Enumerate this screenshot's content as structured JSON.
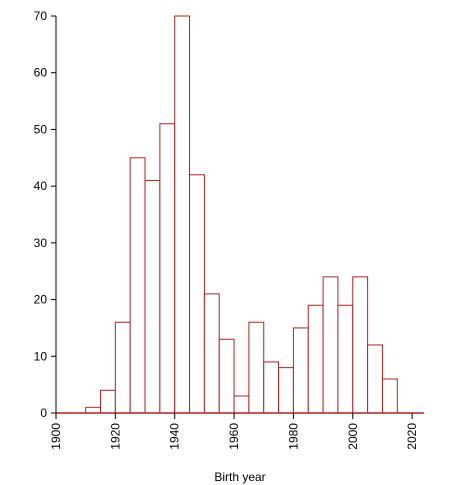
{
  "chart_data": {
    "type": "bar",
    "subtype": "histogram",
    "title": "",
    "xlabel": "Birth year",
    "ylabel": "",
    "xlim": [
      1900,
      2024
    ],
    "ylim": [
      0,
      70
    ],
    "bin_width": 5,
    "x_ticks": [
      "1900",
      "1920",
      "1940",
      "1960",
      "1980",
      "2000",
      "2020"
    ],
    "y_ticks": [
      "0",
      "10",
      "20",
      "30",
      "40",
      "50",
      "60",
      "70"
    ],
    "bins": [
      {
        "start": 1910,
        "value": 1
      },
      {
        "start": 1915,
        "value": 4
      },
      {
        "start": 1920,
        "value": 16
      },
      {
        "start": 1925,
        "value": 45
      },
      {
        "start": 1930,
        "value": 41
      },
      {
        "start": 1935,
        "value": 51
      },
      {
        "start": 1940,
        "value": 70
      },
      {
        "start": 1945,
        "value": 42
      },
      {
        "start": 1950,
        "value": 21
      },
      {
        "start": 1955,
        "value": 13
      },
      {
        "start": 1960,
        "value": 3
      },
      {
        "start": 1965,
        "value": 16
      },
      {
        "start": 1970,
        "value": 9
      },
      {
        "start": 1975,
        "value": 8
      },
      {
        "start": 1980,
        "value": 15
      },
      {
        "start": 1985,
        "value": 19
      },
      {
        "start": 1990,
        "value": 24
      },
      {
        "start": 1995,
        "value": 19
      },
      {
        "start": 2000,
        "value": 24
      },
      {
        "start": 2005,
        "value": 12
      },
      {
        "start": 2010,
        "value": 6
      }
    ],
    "bar_color": "#b22222",
    "bar_fill": "#ffffff",
    "grid": false,
    "legend": "none"
  }
}
